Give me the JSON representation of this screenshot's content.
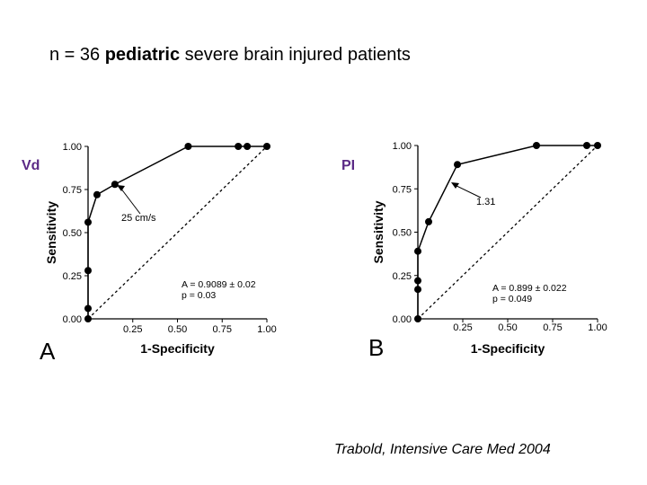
{
  "slide": {
    "title_pre": "n = 36 ",
    "title_bold": "pediatric",
    "title_post": " severe brain injured patients",
    "citation": "Trabold, Intensive Care Med 2004"
  },
  "chart_data": [
    {
      "type": "line",
      "panel_label": "A",
      "side_label": "Vd",
      "xlabel": "1-Specificity",
      "ylabel": "Sensitivity",
      "xlim": [
        0,
        1
      ],
      "ylim": [
        0,
        1
      ],
      "x_ticks": [
        "0.25",
        "0.50",
        "0.75",
        "1.00"
      ],
      "y_ticks": [
        "0.00",
        "0.25",
        "0.50",
        "0.75",
        "1.00"
      ],
      "grid": false,
      "roc_points": [
        {
          "x": 0.0,
          "y": 0.0
        },
        {
          "x": 0.0,
          "y": 0.06
        },
        {
          "x": 0.0,
          "y": 0.28
        },
        {
          "x": 0.0,
          "y": 0.56
        },
        {
          "x": 0.05,
          "y": 0.72
        },
        {
          "x": 0.15,
          "y": 0.78
        },
        {
          "x": 0.56,
          "y": 1.0
        },
        {
          "x": 0.84,
          "y": 1.0
        },
        {
          "x": 0.89,
          "y": 1.0
        },
        {
          "x": 1.0,
          "y": 1.0
        }
      ],
      "diagonal": true,
      "annotation": {
        "text": "25 cm/s",
        "point_x": 0.15,
        "point_y": 0.78
      },
      "stats": [
        "A = 0.9089 ± 0.02",
        "p = 0.03"
      ]
    },
    {
      "type": "line",
      "panel_label": "B",
      "side_label": "PI",
      "xlabel": "1-Specificity",
      "ylabel": "Sensitivity",
      "xlim": [
        0,
        1
      ],
      "ylim": [
        0,
        1
      ],
      "x_ticks": [
        "0.25",
        "0.50",
        "0.75",
        "1.00"
      ],
      "y_ticks": [
        "0.00",
        "0.25",
        "0.50",
        "0.75",
        "1.00"
      ],
      "grid": false,
      "roc_points": [
        {
          "x": 0.0,
          "y": 0.0
        },
        {
          "x": 0.0,
          "y": 0.17
        },
        {
          "x": 0.0,
          "y": 0.22
        },
        {
          "x": 0.0,
          "y": 0.39
        },
        {
          "x": 0.06,
          "y": 0.56
        },
        {
          "x": 0.22,
          "y": 0.89
        },
        {
          "x": 0.66,
          "y": 1.0
        },
        {
          "x": 0.94,
          "y": 1.0
        },
        {
          "x": 1.0,
          "y": 1.0
        }
      ],
      "diagonal": true,
      "annotation": {
        "text": "1.31",
        "point_x": 0.22,
        "point_y": 0.89
      },
      "stats": [
        "A = 0.899 ± 0.022",
        "p = 0.049"
      ]
    }
  ]
}
